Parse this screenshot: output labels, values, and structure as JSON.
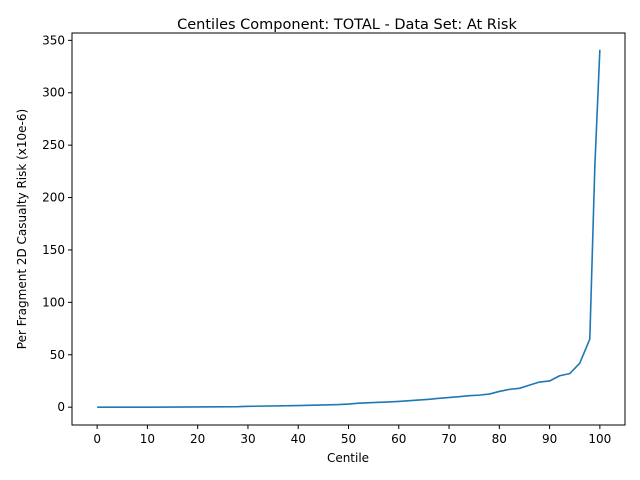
{
  "chart_data": {
    "type": "line",
    "title": "Centiles Component: TOTAL - Data Set: At Risk",
    "xlabel": "Centile",
    "ylabel": "Per Fragment 2D Casualty Risk (x10e-6)",
    "xlim": [
      -5,
      105
    ],
    "ylim": [
      -17,
      357
    ],
    "xticks": [
      0,
      10,
      20,
      30,
      40,
      50,
      60,
      70,
      80,
      90,
      100
    ],
    "yticks": [
      0,
      50,
      100,
      150,
      200,
      250,
      300,
      350
    ],
    "grid": false,
    "color": "#1f77b4",
    "series": [
      {
        "x": [
          0,
          10,
          20,
          28,
          30,
          40,
          48,
          50,
          52,
          58,
          60,
          66,
          68,
          72,
          74,
          76,
          78,
          80,
          82,
          84,
          86,
          88,
          90,
          92,
          94,
          96,
          98,
          99,
          100
        ],
        "y": [
          0,
          0,
          0.2,
          0.5,
          0.8,
          1.5,
          2.5,
          3,
          3.8,
          5,
          5.5,
          7.5,
          8.5,
          10,
          11,
          11.5,
          12.5,
          15,
          17,
          18,
          21,
          24,
          25,
          30,
          32,
          42,
          65,
          230,
          341
        ]
      }
    ]
  }
}
